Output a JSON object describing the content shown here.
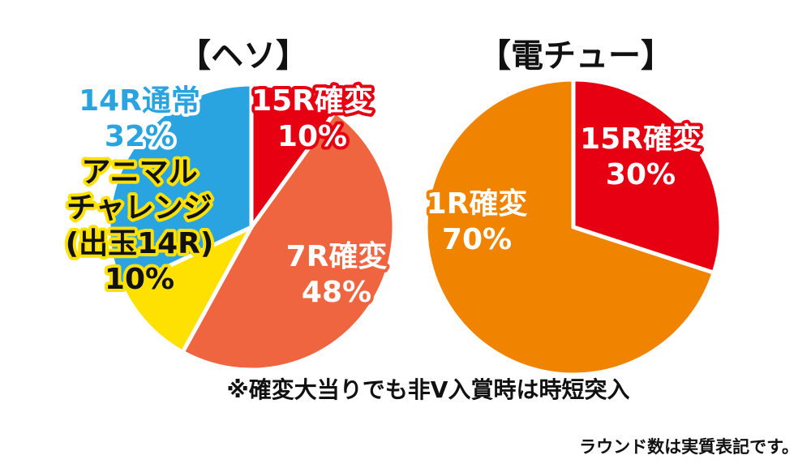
{
  "chart_data": [
    {
      "type": "pie",
      "title": "【ヘソ】",
      "slices": [
        {
          "label": "15R確変",
          "value": 10,
          "value_text": "10%",
          "color": "#e60012",
          "label_fill": "#ffffff",
          "label_stroke": "#e60012"
        },
        {
          "label": "7R確変",
          "value": 48,
          "value_text": "48%",
          "color": "#ee6540",
          "label_fill": "#ffffff",
          "label_stroke": "#ee6540"
        },
        {
          "label": "アニマルチャレンジ(出玉14R)",
          "label_lines": [
            "アニマル",
            "チャレンジ",
            "(出玉14R)"
          ],
          "value": 10,
          "value_text": "10%",
          "color": "#ffe100",
          "label_fill": "#111111",
          "label_stroke": "#ffe100"
        },
        {
          "label": "14R通常",
          "value": 32,
          "value_text": "32%",
          "color": "#2aa4e0",
          "label_fill": "#2aa4e0",
          "label_stroke": "#ffffff"
        }
      ]
    },
    {
      "type": "pie",
      "title": "【電チュー】",
      "slices": [
        {
          "label": "15R確変",
          "value": 30,
          "value_text": "30%",
          "color": "#e60012",
          "label_fill": "#ffffff",
          "label_stroke": "#e60012"
        },
        {
          "label": "1R確変",
          "value": 70,
          "value_text": "70%",
          "color": "#f08300",
          "label_fill": "#ffffff",
          "label_stroke": "#f08300"
        }
      ]
    }
  ],
  "notes": {
    "main": "※確変大当りでも非V入賞時は時短突入",
    "footer": "ラウンド数は実質表記です。"
  }
}
